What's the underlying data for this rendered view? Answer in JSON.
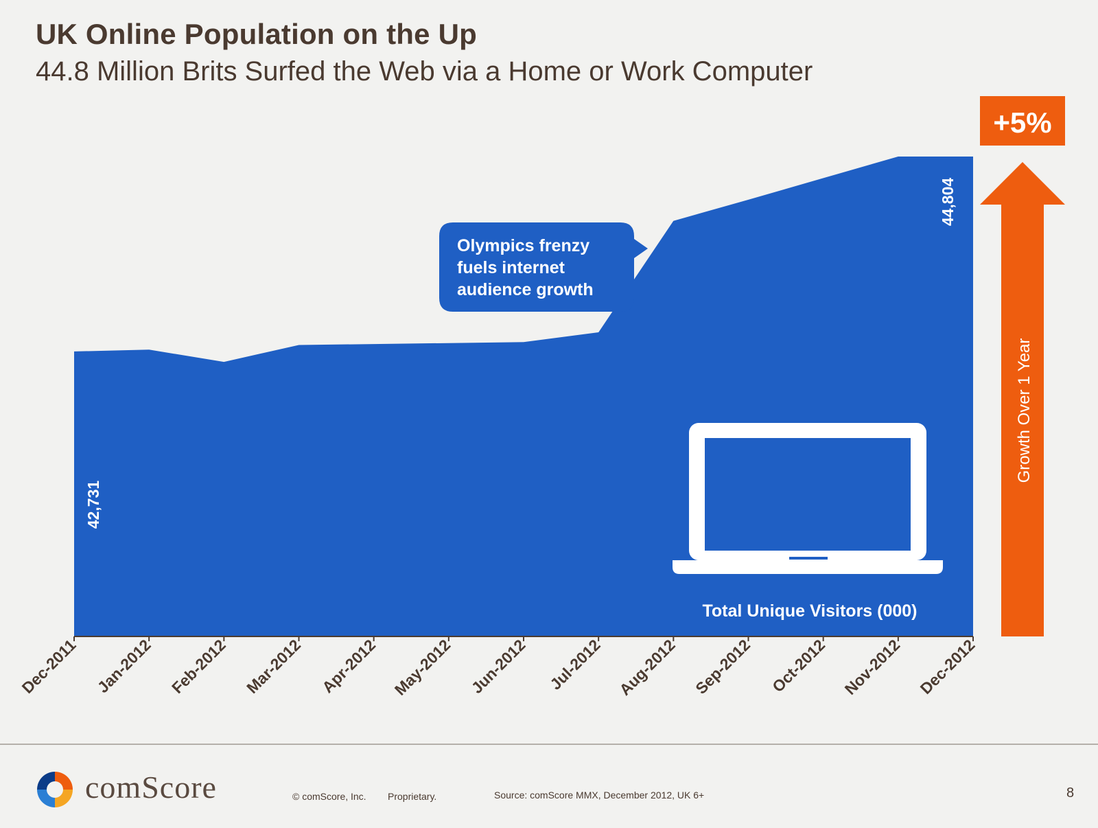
{
  "title": "UK Online Population on the Up",
  "subtitle": "44.8 Million Brits Surfed the Web via a Home or Work Computer",
  "chart_data": {
    "type": "area",
    "categories": [
      "Dec-2011",
      "Jan-2012",
      "Feb-2012",
      "Mar-2012",
      "Apr-2012",
      "May-2012",
      "Jun-2012",
      "Jul-2012",
      "Aug-2012",
      "Sep-2012",
      "Oct-2012",
      "Nov-2012",
      "Dec-2012"
    ],
    "values": [
      42731,
      42750,
      42620,
      42800,
      42810,
      42820,
      42830,
      42935,
      44120,
      44345,
      44575,
      44804,
      44804
    ],
    "ylim": [
      39700,
      44804
    ],
    "grid": false,
    "data_labels": {
      "first": "42,731",
      "last": "44,804"
    },
    "series_label": "Total Unique Visitors (000)",
    "annotation": "Olympics frenzy fuels internet audience growth",
    "annotation_lines": [
      "Olympics frenzy",
      "fuels internet",
      "audience growth"
    ],
    "growth_badge": "+5%",
    "growth_label": "Growth Over 1 Year",
    "colors": {
      "area": "#1f5fc4",
      "accent": "#ee5d0f",
      "axis": "#4a3a30"
    }
  },
  "footer": {
    "logo_text": "comScore",
    "copyright": "© comScore, Inc.",
    "proprietary": "Proprietary.",
    "source": "Source: comScore MMX, December 2012, UK 6+",
    "page_number": "8"
  }
}
